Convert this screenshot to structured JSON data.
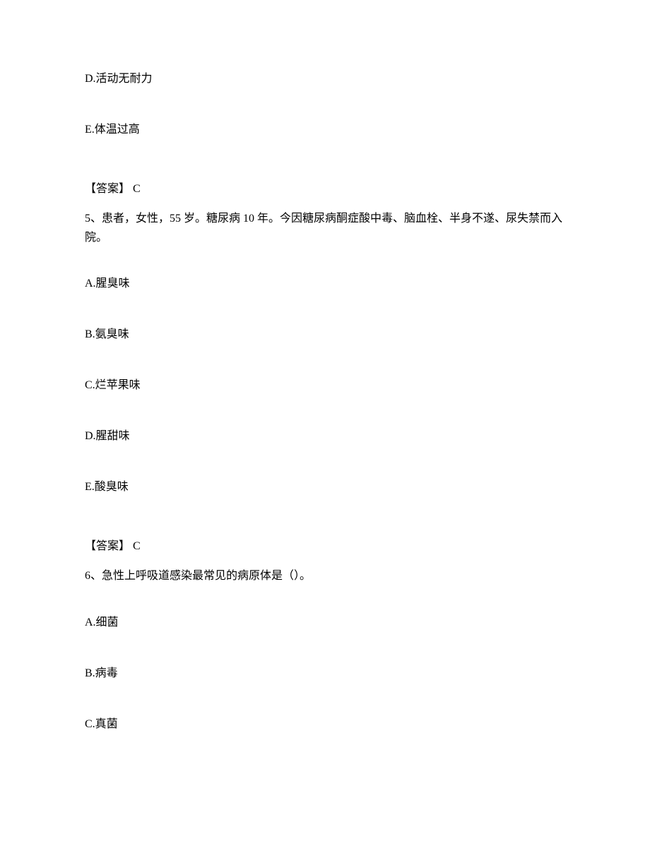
{
  "q4": {
    "optionD": "D.活动无耐力",
    "optionE": "E.体温过高",
    "answerLabel": "【答案】  C"
  },
  "q5": {
    "stem": "5、患者，女性，55 岁。糖尿病 10 年。今因糖尿病酮症酸中毒、脑血栓、半身不遂、尿失禁而入院。",
    "optionA": "A.腥臭味",
    "optionB": "B.氨臭味",
    "optionC": "C.烂苹果味",
    "optionD": "D.腥甜味",
    "optionE": "E.酸臭味",
    "answerLabel": "【答案】  C"
  },
  "q6": {
    "stem": "6、急性上呼吸道感染最常见的病原体是（）。",
    "optionA": "A.细菌",
    "optionB": "B.病毒",
    "optionC": "C.真菌"
  }
}
